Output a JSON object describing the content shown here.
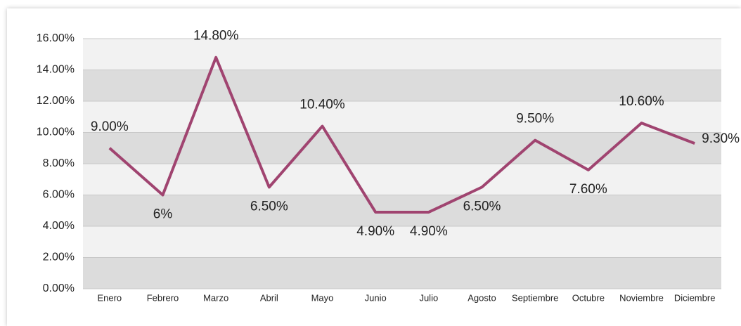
{
  "chart_data": {
    "type": "line",
    "categories": [
      "Enero",
      "Febrero",
      "Marzo",
      "Abril",
      "Mayo",
      "Junio",
      "Julio",
      "Agosto",
      "Septiembre",
      "Octubre",
      "Noviembre",
      "Diciembre"
    ],
    "series": [
      {
        "color": "#a04470",
        "values": [
          9,
          6,
          14.8,
          6.5,
          10.4,
          4.9,
          4.9,
          6.5,
          9.5,
          7.6,
          10.6,
          9.3
        ],
        "value_labels": [
          "9.00%",
          "6%",
          "14.80%",
          "6.50%",
          "10.40%",
          "4.90%",
          "4.90%",
          "6.50%",
          "9.50%",
          "7.60%",
          "10.60%",
          "9.30%"
        ]
      }
    ],
    "ylim": [
      0,
      16
    ],
    "yticks": [
      {
        "value": 0,
        "label": "0.00%"
      },
      {
        "value": 2,
        "label": "2.00%"
      },
      {
        "value": 4,
        "label": "4.00%"
      },
      {
        "value": 6,
        "label": "6.00%"
      },
      {
        "value": 8,
        "label": "8.00%"
      },
      {
        "value": 10,
        "label": "10.00%"
      },
      {
        "value": 12,
        "label": "12.00%"
      },
      {
        "value": 14,
        "label": "14.00%"
      },
      {
        "value": 16,
        "label": "16.00%"
      }
    ],
    "grid": true
  }
}
